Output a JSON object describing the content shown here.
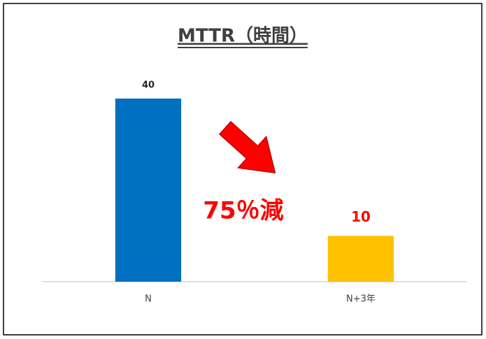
{
  "chart_data": {
    "type": "bar",
    "title": "MTTR（時間）",
    "categories": [
      "N",
      "N+3年"
    ],
    "values": [
      40,
      10
    ],
    "colors": [
      "#0070C0",
      "#FFC000"
    ],
    "value_label_colors": [
      "#262626",
      "#FF0000"
    ],
    "ylim": [
      0,
      50
    ],
    "grid": false,
    "annotations": [
      {
        "text": "75％減",
        "color": "#FF0000"
      }
    ]
  }
}
